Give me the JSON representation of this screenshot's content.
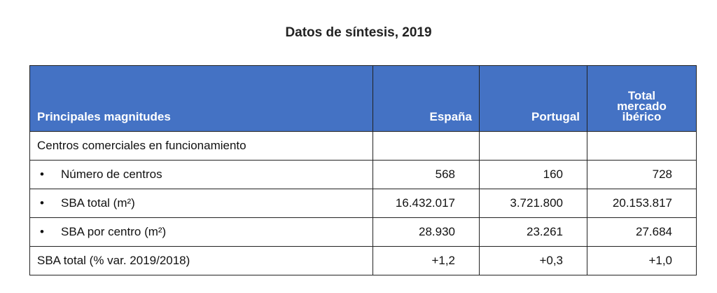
{
  "title": "Datos de síntesis, 2019",
  "table": {
    "header": [
      "Principales magnitudes",
      "España",
      "Portugal",
      "Total mercado ibérico"
    ],
    "rows": [
      {
        "cells": [
          "Centros comerciales en funcionamiento"
        ],
        "bullet": false
      },
      {
        "cells": [
          "Número de centros",
          "568",
          "160",
          "728"
        ],
        "bullet": true
      },
      {
        "cells": [
          "SBA total (m²)",
          "16.432.017",
          "3.721.800",
          "20.153.817"
        ],
        "bullet": true
      },
      {
        "cells": [
          "SBA por centro (m²)",
          "28.930",
          "23.261",
          "27.684"
        ],
        "bullet": true
      },
      {
        "cells": [
          "SBA total (% var. 2019/2018)",
          "+1,2",
          "+0,3",
          "+1,0"
        ],
        "bullet": false
      }
    ]
  }
}
